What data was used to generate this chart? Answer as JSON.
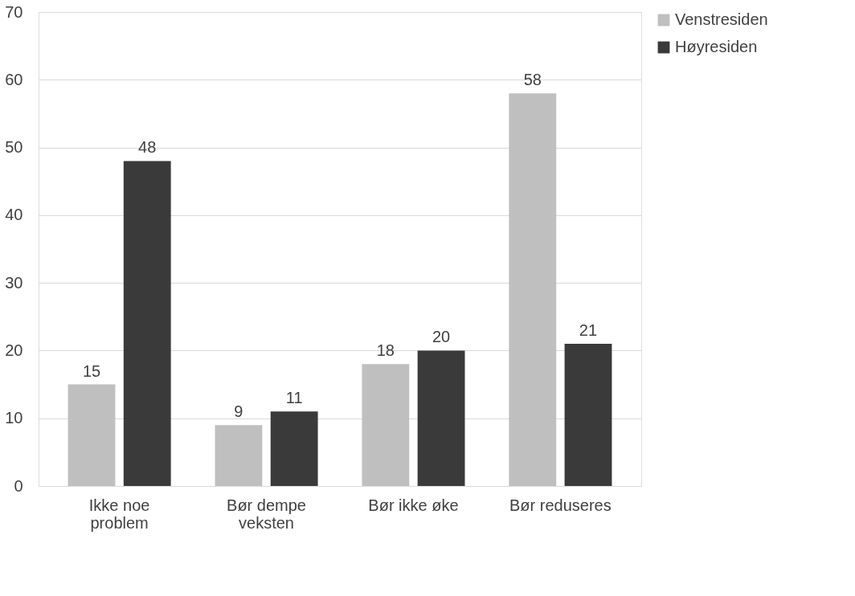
{
  "chart_data": {
    "type": "bar",
    "categories": [
      "Ikke noe problem",
      "Bør dempe veksten",
      "Bør ikke øke",
      "Bør reduseres"
    ],
    "series": [
      {
        "name": "Venstresiden",
        "color": "#bfbfbf",
        "values": [
          15,
          9,
          18,
          58
        ]
      },
      {
        "name": "Høyresiden",
        "color": "#3a3a3a",
        "values": [
          48,
          11,
          20,
          21
        ]
      }
    ],
    "ylim": [
      0,
      70
    ],
    "yticks": [
      0,
      10,
      20,
      30,
      40,
      50,
      60,
      70
    ],
    "grid": "y",
    "legend": "right",
    "data_labels": true
  }
}
